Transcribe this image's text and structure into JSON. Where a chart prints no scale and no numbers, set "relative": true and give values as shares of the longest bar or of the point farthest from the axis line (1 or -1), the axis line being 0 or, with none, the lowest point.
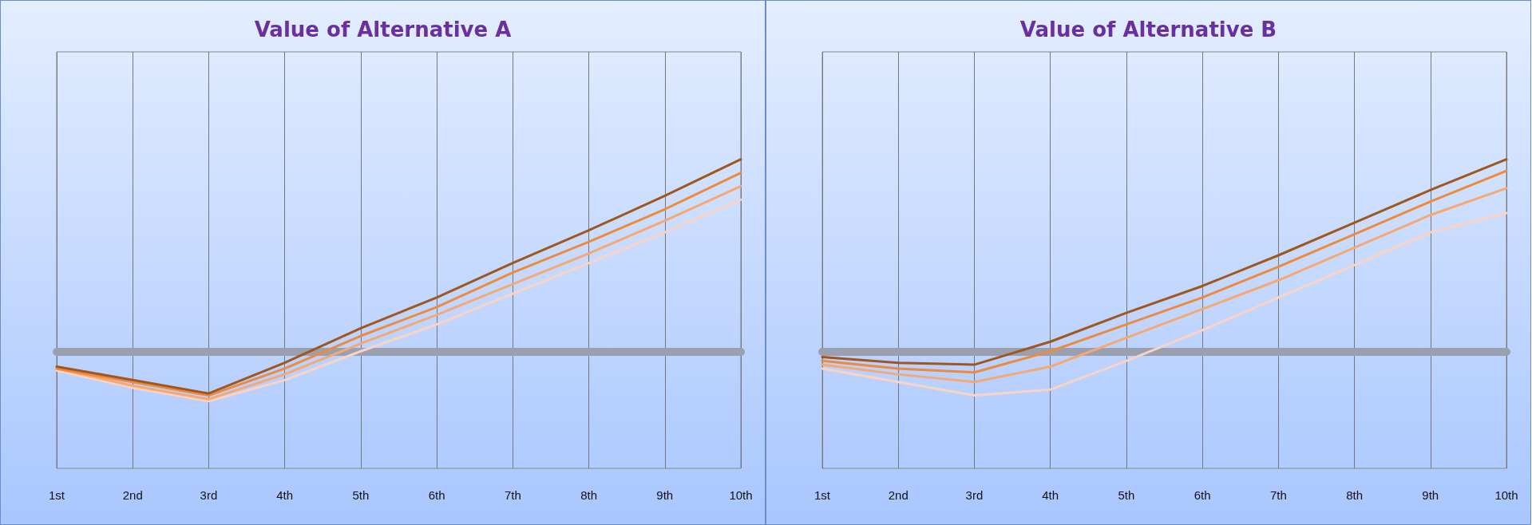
{
  "chart_data": [
    {
      "type": "line",
      "title": "Value of Alternative A",
      "relative": true,
      "grid": "x",
      "marker": "none",
      "line_style": "solid",
      "categories": [
        "1st",
        "2nd",
        "3rd",
        "4th",
        "5th",
        "6th",
        "7th",
        "8th",
        "9th",
        "10th"
      ],
      "series": [
        {
          "color": "#fbd3c4",
          "values": [
            -0.1,
            -0.19,
            -0.26,
            -0.15,
            0,
            0.14,
            0.3,
            0.46,
            0.62,
            0.79
          ]
        },
        {
          "color": "#f7a872",
          "values": [
            -0.09,
            -0.18,
            -0.25,
            -0.12,
            0.04,
            0.19,
            0.35,
            0.51,
            0.68,
            0.86
          ]
        },
        {
          "color": "#ee8a3c",
          "values": [
            -0.09,
            -0.16,
            -0.23,
            -0.09,
            0.08,
            0.23,
            0.41,
            0.57,
            0.74,
            0.93
          ]
        },
        {
          "color": "#a0561c",
          "values": [
            -0.08,
            -0.15,
            -0.22,
            -0.06,
            0.12,
            0.28,
            0.46,
            0.63,
            0.81,
            1
          ]
        }
      ]
    },
    {
      "type": "line",
      "title": "Value of Alternative B",
      "relative": true,
      "grid": "x",
      "marker": "none",
      "line_style": "solid",
      "categories": [
        "1st",
        "2nd",
        "3rd",
        "4th",
        "5th",
        "6th",
        "7th",
        "8th",
        "9th",
        "10th"
      ],
      "series": [
        {
          "color": "#fbd3c4",
          "values": [
            -0.09,
            -0.16,
            -0.23,
            -0.2,
            -0.05,
            0.11,
            0.28,
            0.45,
            0.62,
            0.72
          ]
        },
        {
          "color": "#f7a872",
          "values": [
            -0.07,
            -0.12,
            -0.16,
            -0.08,
            0.07,
            0.22,
            0.37,
            0.54,
            0.71,
            0.85
          ]
        },
        {
          "color": "#ee8a3c",
          "values": [
            -0.05,
            -0.09,
            -0.11,
            0,
            0.14,
            0.28,
            0.44,
            0.61,
            0.78,
            0.94
          ]
        },
        {
          "color": "#a0561c",
          "values": [
            -0.03,
            -0.06,
            -0.07,
            0.05,
            0.2,
            0.34,
            0.5,
            0.67,
            0.84,
            1
          ]
        }
      ]
    }
  ]
}
